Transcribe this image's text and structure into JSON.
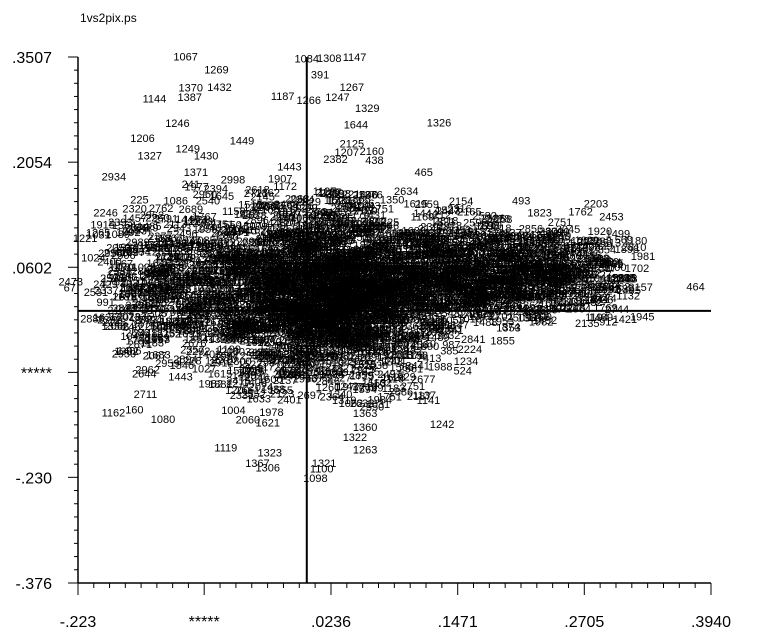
{
  "chart_data": {
    "type": "scatter",
    "title": "1vs2pix.ps",
    "xlabel": "",
    "ylabel": "",
    "xlim": [
      -0.223,
      0.394
    ],
    "ylim": [
      -0.376,
      0.3507
    ],
    "x_tick_labels": [
      "-.223",
      "*****",
      ".0236",
      ".1471",
      ".2705",
      ".3940"
    ],
    "x_tick_values": [
      -0.223,
      -0.1,
      0.0236,
      0.1471,
      0.2705,
      0.394
    ],
    "y_tick_labels": [
      ".3507",
      ".2054",
      ".0602",
      "*****",
      "-.230",
      "-.376"
    ],
    "y_tick_values": [
      0.3507,
      0.2054,
      0.0602,
      -0.085,
      -0.23,
      -0.376
    ],
    "crosshair": {
      "x": 0.0,
      "y": 0.0
    },
    "grid": false,
    "legend": "none",
    "labeled_points": [
      {
        "label": "1067",
        "x": -0.13,
        "y": 0.346
      },
      {
        "label": "1084",
        "x": -0.012,
        "y": 0.343
      },
      {
        "label": "1308",
        "x": 0.01,
        "y": 0.344
      },
      {
        "label": "1147",
        "x": 0.035,
        "y": 0.345
      },
      {
        "label": "1269",
        "x": -0.1,
        "y": 0.328
      },
      {
        "label": "391",
        "x": 0.004,
        "y": 0.321
      },
      {
        "label": "1370",
        "x": -0.125,
        "y": 0.303
      },
      {
        "label": "1432",
        "x": -0.097,
        "y": 0.304
      },
      {
        "label": "1267",
        "x": 0.032,
        "y": 0.304
      },
      {
        "label": "1144",
        "x": -0.16,
        "y": 0.288
      },
      {
        "label": "1387",
        "x": -0.126,
        "y": 0.29
      },
      {
        "label": "1187",
        "x": -0.035,
        "y": 0.291
      },
      {
        "label": "1266",
        "x": -0.01,
        "y": 0.286
      },
      {
        "label": "1247",
        "x": 0.018,
        "y": 0.29
      },
      {
        "label": "1329",
        "x": 0.047,
        "y": 0.275
      },
      {
        "label": "1326",
        "x": 0.117,
        "y": 0.255
      },
      {
        "label": "1246",
        "x": -0.138,
        "y": 0.254
      },
      {
        "label": "1644",
        "x": 0.036,
        "y": 0.252
      },
      {
        "label": "1206",
        "x": -0.172,
        "y": 0.233
      },
      {
        "label": "1449",
        "x": -0.075,
        "y": 0.23
      },
      {
        "label": "2125",
        "x": 0.032,
        "y": 0.226
      },
      {
        "label": "1249",
        "x": -0.128,
        "y": 0.219
      },
      {
        "label": "1207",
        "x": 0.027,
        "y": 0.214
      },
      {
        "label": "1327",
        "x": -0.165,
        "y": 0.209
      },
      {
        "label": "1430",
        "x": -0.11,
        "y": 0.209
      },
      {
        "label": "438",
        "x": 0.057,
        "y": 0.203
      },
      {
        "label": "465",
        "x": 0.105,
        "y": 0.186
      },
      {
        "label": "2934",
        "x": -0.2,
        "y": 0.18
      },
      {
        "label": "1371",
        "x": -0.12,
        "y": 0.186
      },
      {
        "label": "241",
        "x": -0.122,
        "y": 0.17
      },
      {
        "label": "2634",
        "x": 0.085,
        "y": 0.16
      },
      {
        "label": "2506",
        "x": 0.045,
        "y": 0.155
      },
      {
        "label": "493",
        "x": 0.2,
        "y": 0.147
      },
      {
        "label": "2203",
        "x": 0.27,
        "y": 0.143
      },
      {
        "label": "2959",
        "x": 0.105,
        "y": 0.142
      },
      {
        "label": "2316",
        "x": 0.137,
        "y": 0.136
      },
      {
        "label": "1823",
        "x": 0.215,
        "y": 0.13
      },
      {
        "label": "1762",
        "x": 0.255,
        "y": 0.132
      },
      {
        "label": "2453",
        "x": 0.285,
        "y": 0.125
      },
      {
        "label": "225",
        "x": -0.172,
        "y": 0.148
      },
      {
        "label": "2246",
        "x": -0.208,
        "y": 0.13
      },
      {
        "label": "1564",
        "x": -0.19,
        "y": 0.113
      },
      {
        "label": "1221",
        "x": -0.228,
        "y": 0.095
      },
      {
        "label": "1031",
        "x": -0.215,
        "y": 0.1
      },
      {
        "label": "1024",
        "x": -0.22,
        "y": 0.068
      },
      {
        "label": "569",
        "x": 0.3,
        "y": 0.093
      },
      {
        "label": "1898",
        "x": 0.3,
        "y": 0.08
      },
      {
        "label": "1702",
        "x": 0.31,
        "y": 0.054
      },
      {
        "label": "1597",
        "x": 0.278,
        "y": 0.054
      },
      {
        "label": "1118",
        "x": 0.3,
        "y": 0.039
      },
      {
        "label": "464",
        "x": 0.37,
        "y": 0.028
      },
      {
        "label": "2473",
        "x": -0.242,
        "y": 0.035
      },
      {
        "label": "1782",
        "x": -0.2,
        "y": 0.035
      },
      {
        "label": "67",
        "x": -0.237,
        "y": 0.027
      },
      {
        "label": "991",
        "x": -0.205,
        "y": 0.007
      },
      {
        "label": "2336",
        "x": 0.275,
        "y": 0.01
      },
      {
        "label": "853",
        "x": 0.21,
        "y": -0.008
      },
      {
        "label": "1700",
        "x": 0.215,
        "y": -0.013
      },
      {
        "label": "576",
        "x": 0.238,
        "y": -0.002
      },
      {
        "label": "1945",
        "x": 0.315,
        "y": -0.013
      },
      {
        "label": "912",
        "x": 0.285,
        "y": -0.02
      },
      {
        "label": "874",
        "x": 0.19,
        "y": -0.027
      },
      {
        "label": "246",
        "x": -0.18,
        "y": -0.027
      },
      {
        "label": "2886",
        "x": 0.122,
        "y": -0.025
      },
      {
        "label": "1406",
        "x": -0.185,
        "y": -0.06
      },
      {
        "label": "987",
        "x": 0.132,
        "y": -0.052
      },
      {
        "label": "385",
        "x": 0.13,
        "y": -0.06
      },
      {
        "label": "182",
        "x": 0.095,
        "y": -0.06
      },
      {
        "label": "2067",
        "x": -0.16,
        "y": -0.067
      },
      {
        "label": "1304",
        "x": 0.067,
        "y": -0.067
      },
      {
        "label": "1027",
        "x": -0.112,
        "y": -0.085
      },
      {
        "label": "1050",
        "x": -0.063,
        "y": -0.087
      },
      {
        "label": "2309",
        "x": 0.017,
        "y": -0.09
      },
      {
        "label": "524",
        "x": 0.143,
        "y": -0.088
      },
      {
        "label": "1443",
        "x": -0.135,
        "y": -0.096
      },
      {
        "label": "1445",
        "x": -0.073,
        "y": -0.094
      },
      {
        "label": "1183",
        "x": 0.073,
        "y": -0.112
      },
      {
        "label": "1137",
        "x": 0.103,
        "y": -0.122
      },
      {
        "label": "1141",
        "x": 0.107,
        "y": -0.129
      },
      {
        "label": "1062",
        "x": 0.031,
        "y": -0.133
      },
      {
        "label": "1162",
        "x": -0.2,
        "y": -0.146
      },
      {
        "label": "160",
        "x": -0.177,
        "y": -0.142
      },
      {
        "label": "1080",
        "x": -0.152,
        "y": -0.155
      },
      {
        "label": "1363",
        "x": 0.045,
        "y": -0.147
      },
      {
        "label": "1242",
        "x": 0.12,
        "y": -0.162
      },
      {
        "label": "1360",
        "x": 0.045,
        "y": -0.166
      },
      {
        "label": "1322",
        "x": 0.035,
        "y": -0.18
      },
      {
        "label": "1119",
        "x": -0.09,
        "y": -0.194
      },
      {
        "label": "1263",
        "x": 0.045,
        "y": -0.197
      },
      {
        "label": "1323",
        "x": -0.048,
        "y": -0.201
      },
      {
        "label": "1367",
        "x": -0.06,
        "y": -0.216
      },
      {
        "label": "1321",
        "x": 0.005,
        "y": -0.216
      },
      {
        "label": "1306",
        "x": -0.05,
        "y": -0.222
      },
      {
        "label": "1100",
        "x": 0.003,
        "y": -0.223
      }
    ]
  }
}
